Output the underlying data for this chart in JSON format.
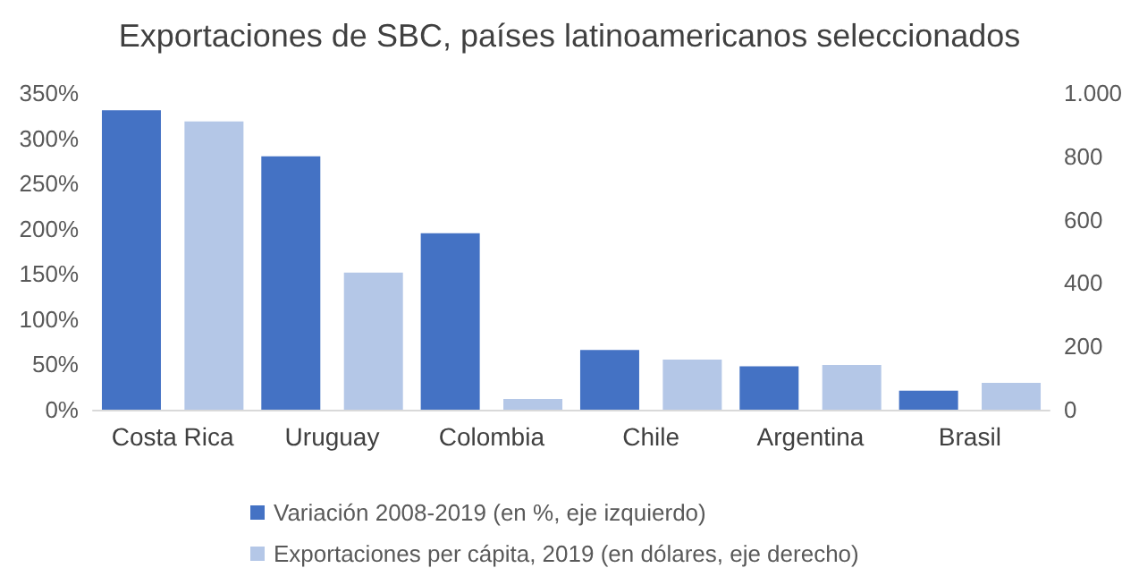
{
  "chart_data": {
    "type": "bar",
    "title": "Exportaciones de SBC, países latinoamericanos seleccionados",
    "categories": [
      "Costa Rica",
      "Uruguay",
      "Colombia",
      "Chile",
      "Argentina",
      "Brasil"
    ],
    "series": [
      {
        "name": "Variación 2008-2019 (en %, eje izquierdo)",
        "color": "#4472c4",
        "values": [
          331,
          280,
          195,
          66,
          48,
          21
        ]
      },
      {
        "name": "Exportaciones per cápita, 2019 (en dólares, eje derecho)",
        "color": "#b4c7e7",
        "axis": "y2",
        "values": [
          910,
          433,
          34,
          158,
          141,
          85
        ]
      }
    ],
    "ylim": [
      0,
      350
    ],
    "yticks": [
      {
        "value": 0,
        "label": "0%"
      },
      {
        "value": 50,
        "label": "50%"
      },
      {
        "value": 100,
        "label": "100%"
      },
      {
        "value": 150,
        "label": "150%"
      },
      {
        "value": 200,
        "label": "200%"
      },
      {
        "value": 250,
        "label": "250%"
      },
      {
        "value": 300,
        "label": "300%"
      },
      {
        "value": 350,
        "label": "350%"
      }
    ],
    "y2lim": [
      0,
      1000
    ],
    "y2ticks": [
      {
        "value": 0,
        "label": "0"
      },
      {
        "value": 200,
        "label": "200"
      },
      {
        "value": 400,
        "label": "400"
      },
      {
        "value": 600,
        "label": "600"
      },
      {
        "value": 800,
        "label": "800"
      },
      {
        "value": 1000,
        "label": "1.000"
      }
    ],
    "grid": false,
    "legend": "bottom"
  }
}
